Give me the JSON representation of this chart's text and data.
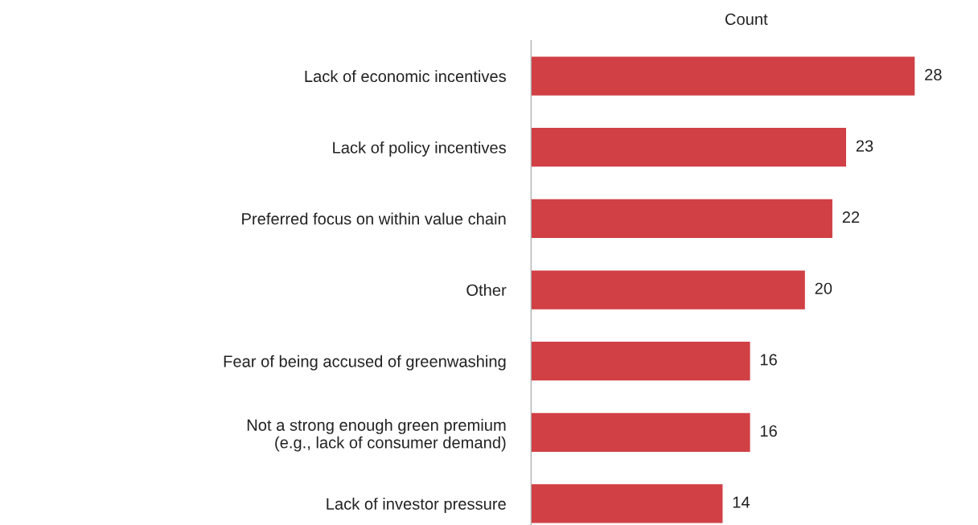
{
  "chart_data": {
    "type": "bar",
    "orientation": "horizontal",
    "title": "Count",
    "categories": [
      "Lack of economic incentives",
      "Lack of policy incentives",
      "Preferred focus on within value chain",
      "Other",
      "Fear of being accused of greenwashing",
      "Not a strong enough green premium\n(e.g., lack of consumer demand)",
      "Lack of investor pressure"
    ],
    "values": [
      28,
      23,
      22,
      20,
      16,
      16,
      14
    ],
    "color": "#d04045",
    "data_labels": true,
    "grid": false,
    "legend": false
  }
}
